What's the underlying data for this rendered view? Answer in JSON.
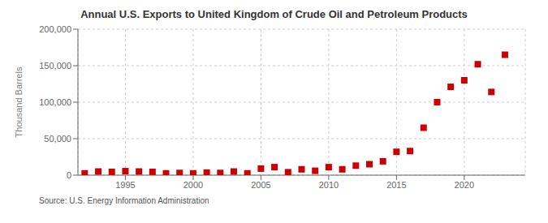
{
  "chart_data": {
    "type": "scatter",
    "title": "Annual U.S. Exports to United Kingdom of Crude Oil and Petroleum Products",
    "ylabel": "Thousand Barrels",
    "source": "Source: U.S. Energy Information Administration",
    "x": [
      1992,
      1993,
      1994,
      1995,
      1996,
      1997,
      1998,
      1999,
      2000,
      2001,
      2002,
      2003,
      2004,
      2005,
      2006,
      2007,
      2008,
      2009,
      2010,
      2011,
      2012,
      2013,
      2014,
      2015,
      2016,
      2017,
      2018,
      2019,
      2020,
      2021,
      2022,
      2023
    ],
    "values": [
      2500,
      5000,
      4500,
      5500,
      5000,
      4500,
      2500,
      3000,
      2500,
      3500,
      3000,
      5000,
      2500,
      9000,
      11000,
      4000,
      8000,
      6000,
      11000,
      8000,
      13000,
      15000,
      19000,
      32000,
      33000,
      65000,
      100000,
      121000,
      130000,
      152000,
      114000,
      165000
    ],
    "color": "#cc0000",
    "marker": "square",
    "grid": true,
    "xlim": [
      1991.5,
      2024.5
    ],
    "xticks": [
      1995,
      2000,
      2005,
      2010,
      2015,
      2020
    ],
    "ylim": [
      0,
      200000
    ],
    "yticks": [
      0,
      {
        "value": 50000,
        "label": "50,000"
      },
      {
        "value": 100000,
        "label": "100,000"
      },
      {
        "value": 150000,
        "label": "150,000"
      },
      {
        "value": 200000,
        "label": "200,000"
      }
    ]
  }
}
